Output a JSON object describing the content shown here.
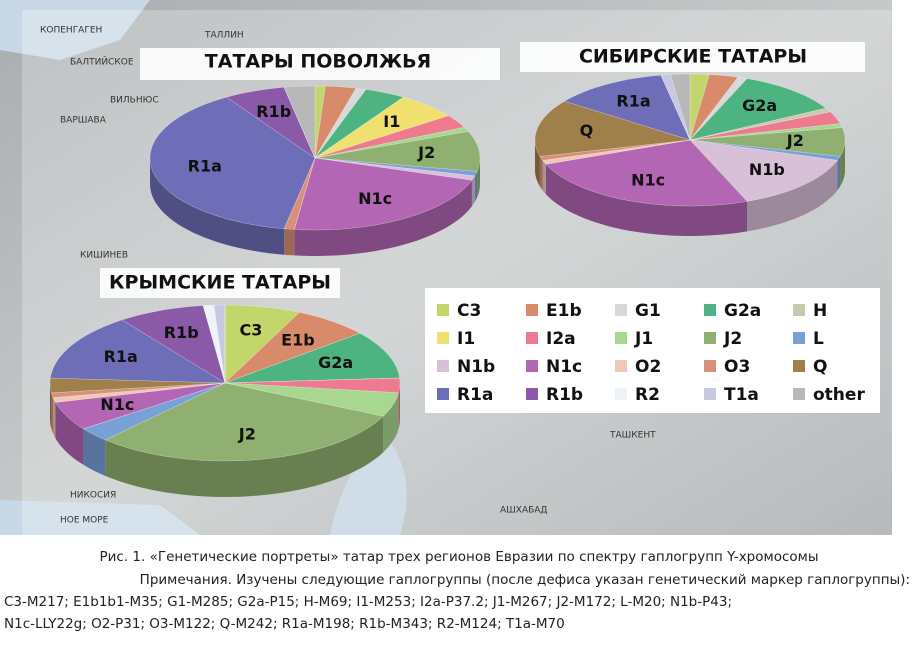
{
  "chart_data": [
    {
      "type": "pie",
      "title": "ТАТАРЫ ПОВОЛЖЬЯ",
      "categories": [
        null,
        null,
        null,
        null,
        null,
        "I1",
        null,
        null,
        "J2",
        null,
        null,
        "N1c",
        null,
        null,
        null,
        "R1a",
        "R1b",
        null,
        null,
        null
      ],
      "values": [
        1,
        3,
        1,
        4,
        0,
        6,
        3,
        1,
        9,
        1,
        1,
        22,
        0,
        1,
        0,
        38,
        6,
        0,
        0,
        3
      ],
      "colors": [
        "#c3d66b",
        "#d98a6a",
        "#d9d9d9",
        "#4db380",
        "#c9c9b0",
        "#f0e070",
        "#ee7a90",
        "#a8d890",
        "#8fb070",
        "#7aa0d8",
        "#d8c0d8",
        "#b366b3",
        "#f0c8b8",
        "#d8907a",
        "#a0804a",
        "#6e6eb8",
        "#8a5aa8",
        "#eef3f8",
        "#c8c8e0",
        "#b8b8b8"
      ]
    },
    {
      "type": "pie",
      "title": "СИБИРСКИЕ ТАТАРЫ",
      "categories": [
        null,
        null,
        null,
        "G2a",
        null,
        null,
        null,
        null,
        "J2",
        null,
        "N1b",
        "N1c",
        null,
        null,
        "Q",
        "R1a",
        null,
        null,
        null,
        null
      ],
      "values": [
        2,
        3,
        1,
        11,
        1,
        0,
        3,
        1,
        7,
        1,
        14,
        25,
        1,
        1,
        14,
        12,
        0,
        0,
        1,
        2
      ],
      "colors": [
        "#c3d66b",
        "#d98a6a",
        "#d9d9d9",
        "#4db380",
        "#c9c9b0",
        "#f0e070",
        "#ee7a90",
        "#a8d890",
        "#8fb070",
        "#7aa0d8",
        "#d8c0d8",
        "#b366b3",
        "#f0c8b8",
        "#d8907a",
        "#a0804a",
        "#6e6eb8",
        "#8a5aa8",
        "#eef3f8",
        "#c8c8e0",
        "#b8b8b8"
      ]
    },
    {
      "type": "pie",
      "title": "КРЫМСКИЕ ТАТАРЫ",
      "categories": [
        "C3",
        "E1b",
        null,
        "G2a",
        null,
        null,
        null,
        null,
        "J2",
        null,
        null,
        "N1c",
        null,
        null,
        null,
        "R1a",
        "R1b",
        null,
        null,
        null
      ],
      "values": [
        7,
        7,
        0,
        10,
        0,
        0,
        3,
        5,
        30,
        3,
        0,
        6,
        1,
        1,
        3,
        14,
        8,
        1,
        1,
        0
      ],
      "colors": [
        "#c3d66b",
        "#d98a6a",
        "#d9d9d9",
        "#4db380",
        "#c9c9b0",
        "#f0e070",
        "#ee7a90",
        "#a8d890",
        "#8fb070",
        "#7aa0d8",
        "#d8c0d8",
        "#b366b3",
        "#f0c8b8",
        "#d8907a",
        "#a0804a",
        "#6e6eb8",
        "#8a5aa8",
        "#eef3f8",
        "#c8c8e0",
        "#b8b8b8"
      ]
    }
  ],
  "legend": {
    "names": [
      "C3",
      "E1b",
      "G1",
      "G2a",
      "H",
      "I1",
      "I2a",
      "J1",
      "J2",
      "L",
      "N1b",
      "N1c",
      "O2",
      "O3",
      "Q",
      "R1a",
      "R1b",
      "R2",
      "T1a",
      "other"
    ],
    "colors": [
      "#c3d66b",
      "#d98a6a",
      "#d9d9d9",
      "#4db380",
      "#c9c9b0",
      "#f0e070",
      "#ee7a90",
      "#a8d890",
      "#8fb070",
      "#7aa0d8",
      "#d8c0d8",
      "#b366b3",
      "#f0c8b8",
      "#d8907a",
      "#a0804a",
      "#6e6eb8",
      "#8a5aa8",
      "#eef3f8",
      "#c8c8e0",
      "#b8b8b8"
    ]
  },
  "map_labels": [
    "КОПЕНГАГЕН",
    "ТАЛЛИН",
    "БАЛТИЙСКОЕ",
    "ВИЛЬНЮС",
    "ВАРШАВА",
    "КИШИНЕВ",
    "НИКОСИЯ",
    "НОЕ МОРЕ",
    "ТАШКЕНТ",
    "АШХАБАД"
  ],
  "caption": {
    "title": "Рис. 1. «Генетические портреты» татар трех регионов Евразии по спектру гаплогрупп Y-хромосомы",
    "lines": [
      "Примечания. Изучены следующие гаплогруппы (после дефиса указан генетический маркер гаплогруппы):",
      "C3-M217; E1b1b1-M35; G1-M285; G2a-P15; H-M69; I1-M253; I2a-P37.2; J1-M267; J2-M172; L-M20; N1b-P43;",
      "N1c-LLY22g; O2-P31; O3-M122; Q-M242; R1a-M198; R1b-M343; R2-M124; T1a-M70"
    ]
  }
}
